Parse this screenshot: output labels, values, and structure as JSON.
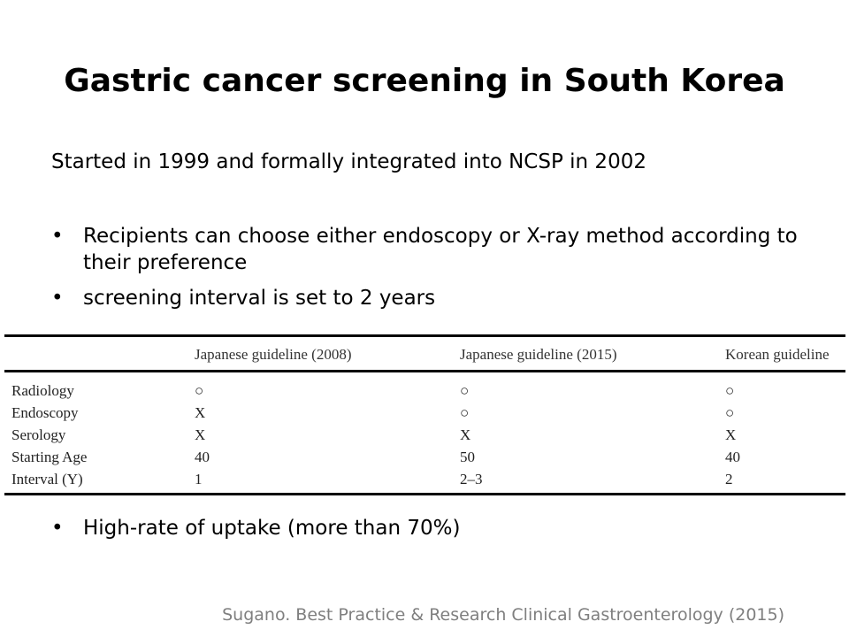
{
  "slide": {
    "title": "Gastric cancer screening in South Korea",
    "intro": "Started in 1999 and formally integrated into NCSP in 2002",
    "bullets_top": [
      "Recipients can choose either endoscopy or X-ray method according to their preference",
      "screening interval is set to 2 years"
    ],
    "bullets_bottom": [
      "High-rate of uptake (more than 70%)"
    ],
    "bullet_glyph": "•",
    "citation": "Sugano. Best Practice & Research Clinical Gastroenterology (2015)"
  },
  "table": {
    "headers": [
      "",
      "Japanese guideline (2008)",
      "Japanese guideline (2015)",
      "Korean guideline"
    ],
    "rows": [
      [
        "Radiology",
        "○",
        "○",
        "○"
      ],
      [
        "Endoscopy",
        "X",
        "○",
        "○"
      ],
      [
        "Serology",
        "X",
        "X",
        "X"
      ],
      [
        "Starting Age",
        "40",
        "50",
        "40"
      ],
      [
        "Interval (Y)",
        "1",
        "2–3",
        "2"
      ]
    ]
  }
}
